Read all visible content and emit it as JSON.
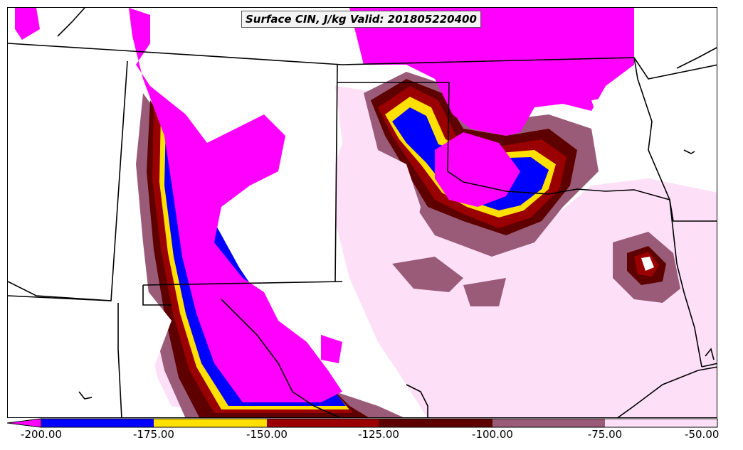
{
  "title": "Surface CIN, J/kg Valid: 201805220400",
  "legend": {
    "ticks": [
      "-200.00",
      "-175.00",
      "-150.00",
      "-125.00",
      "-100.00",
      "-75.00",
      "-50.00"
    ],
    "bins": [
      {
        "from": -200,
        "to": -175,
        "color": "#0000ff"
      },
      {
        "from": -175,
        "to": -150,
        "color": "#ffe000"
      },
      {
        "from": -150,
        "to": -125,
        "color": "#9a0000"
      },
      {
        "from": -125,
        "to": -100,
        "color": "#5e0000"
      },
      {
        "from": -100,
        "to": -75,
        "color": "#9a5b78"
      },
      {
        "from": -75,
        "to": -50,
        "color": "#fde0f8"
      }
    ],
    "below_min_color": "#ff00ff"
  },
  "colors": {
    "magenta": "#ff00ff",
    "blue": "#0000ff",
    "yellow": "#ffe000",
    "dark_red": "#9a0000",
    "maroon": "#5e0000",
    "mauve": "#9a5b78",
    "pink": "#fde0f8",
    "boundary": "#000000"
  }
}
